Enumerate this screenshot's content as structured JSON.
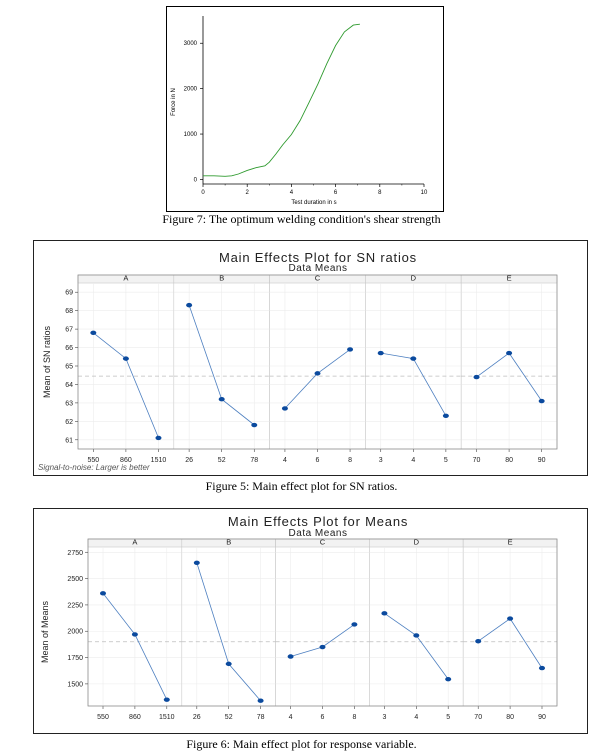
{
  "figure7": {
    "caption": "Figure 7: The optimum welding condition's shear strength",
    "chart_data": {
      "type": "line",
      "xlabel": "Test duration in s",
      "ylabel": "Force in N",
      "xlim": [
        0,
        10
      ],
      "ylim": [
        -100,
        3600
      ],
      "xticks": [
        0,
        2,
        4,
        6,
        8,
        10
      ],
      "yticks": [
        0,
        1000,
        2000,
        3000
      ],
      "line_color": "#2e9a2e",
      "series": [
        {
          "x": [
            0,
            0.5,
            1.0,
            1.3,
            1.6,
            2.0,
            2.4,
            2.8,
            3.0,
            3.3,
            3.6,
            4.0,
            4.4,
            4.8,
            5.2,
            5.6,
            6.0,
            6.4,
            6.8,
            7.1
          ],
          "y": [
            80,
            80,
            70,
            80,
            120,
            200,
            260,
            300,
            380,
            560,
            760,
            990,
            1300,
            1700,
            2100,
            2550,
            2950,
            3250,
            3400,
            3420
          ]
        }
      ]
    }
  },
  "figure5": {
    "caption": "Figure 5: Main effect plot for SN ratios.",
    "title": "Main Effects Plot for SN ratios",
    "subtitle": "Data Means",
    "ylabel": "Mean of SN ratios",
    "note": "Signal-to-noise: Larger is better",
    "chart_data": {
      "type": "line",
      "ylim": [
        60.5,
        69.5
      ],
      "yticks": [
        61,
        62,
        63,
        64,
        65,
        66,
        67,
        68,
        69
      ],
      "reference_line": 64.45,
      "panels": [
        {
          "name": "A",
          "categories": [
            "550",
            "860",
            "1510"
          ],
          "values": [
            66.8,
            65.4,
            61.1
          ]
        },
        {
          "name": "B",
          "categories": [
            "26",
            "52",
            "78"
          ],
          "values": [
            68.3,
            63.2,
            61.8
          ]
        },
        {
          "name": "C",
          "categories": [
            "4",
            "6",
            "8"
          ],
          "values": [
            62.7,
            64.6,
            65.9
          ]
        },
        {
          "name": "D",
          "categories": [
            "3",
            "4",
            "5"
          ],
          "values": [
            65.7,
            65.4,
            62.3
          ]
        },
        {
          "name": "E",
          "categories": [
            "70",
            "80",
            "90"
          ],
          "values": [
            64.4,
            65.7,
            63.1
          ]
        }
      ]
    }
  },
  "figure6": {
    "caption": "Figure 6: Main effect plot for response variable.",
    "title": "Main Effects Plot for Means",
    "subtitle": "Data Means",
    "ylabel": "Mean of Means",
    "chart_data": {
      "type": "line",
      "ylim": [
        1290,
        2800
      ],
      "yticks": [
        1500,
        1750,
        2000,
        2250,
        2500,
        2750
      ],
      "reference_line": 1900,
      "panels": [
        {
          "name": "A",
          "categories": [
            "550",
            "860",
            "1510"
          ],
          "values": [
            2360,
            1970,
            1350
          ]
        },
        {
          "name": "B",
          "categories": [
            "26",
            "52",
            "78"
          ],
          "values": [
            2650,
            1690,
            1340
          ]
        },
        {
          "name": "C",
          "categories": [
            "4",
            "6",
            "8"
          ],
          "values": [
            1760,
            1850,
            2065
          ]
        },
        {
          "name": "D",
          "categories": [
            "3",
            "4",
            "5"
          ],
          "values": [
            2170,
            1960,
            1545
          ]
        },
        {
          "name": "E",
          "categories": [
            "70",
            "80",
            "90"
          ],
          "values": [
            1905,
            2120,
            1650
          ]
        }
      ]
    }
  }
}
